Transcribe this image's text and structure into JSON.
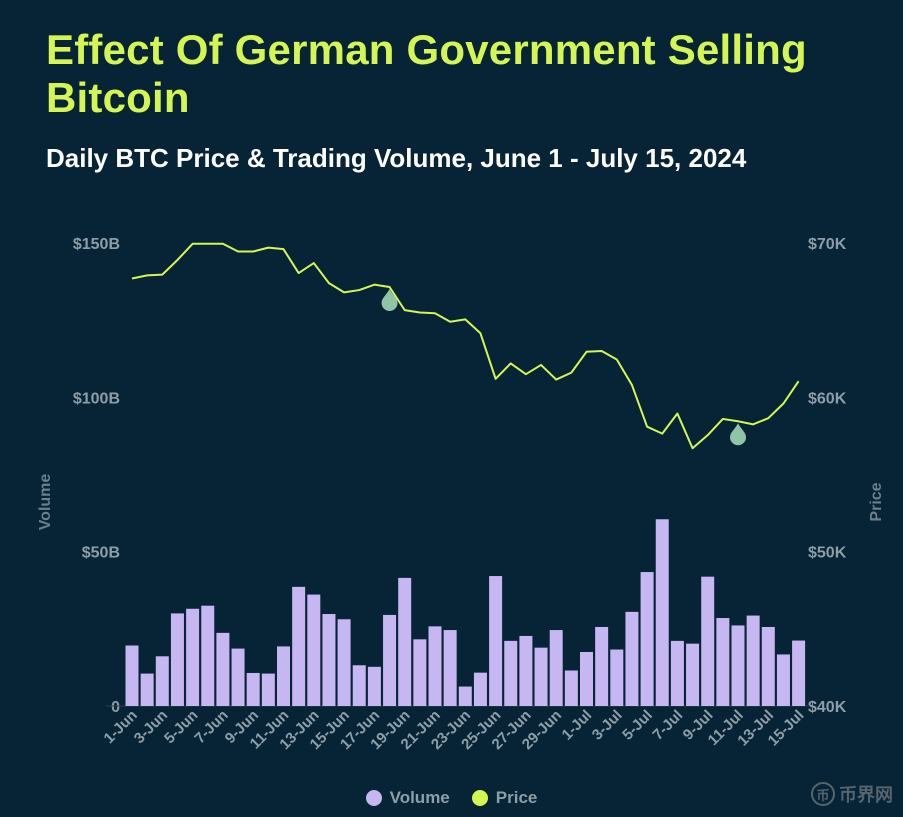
{
  "chart_data": {
    "type": "bar+line",
    "title": "Effect Of German Government Selling Bitcoin",
    "subtitle": "Daily BTC Price & Trading Volume, June 1 - July 15, 2024",
    "categories": [
      "1-Jun",
      "2-Jun",
      "3-Jun",
      "4-Jun",
      "5-Jun",
      "6-Jun",
      "7-Jun",
      "8-Jun",
      "9-Jun",
      "10-Jun",
      "11-Jun",
      "12-Jun",
      "13-Jun",
      "14-Jun",
      "15-Jun",
      "16-Jun",
      "17-Jun",
      "18-Jun",
      "19-Jun",
      "20-Jun",
      "21-Jun",
      "22-Jun",
      "23-Jun",
      "24-Jun",
      "25-Jun",
      "26-Jun",
      "27-Jun",
      "28-Jun",
      "29-Jun",
      "30-Jun",
      "1-Jul",
      "2-Jul",
      "3-Jul",
      "4-Jul",
      "5-Jul",
      "6-Jul",
      "7-Jul",
      "8-Jul",
      "9-Jul",
      "10-Jul",
      "11-Jul",
      "12-Jul",
      "13-Jul",
      "14-Jul",
      "15-Jul"
    ],
    "x_tick_labels": [
      "1-Jun",
      "3-Jun",
      "5-Jun",
      "7-Jun",
      "9-Jun",
      "11-Jun",
      "13-Jun",
      "15-Jun",
      "17-Jun",
      "19-Jun",
      "21-Jun",
      "23-Jun",
      "25-Jun",
      "27-Jun",
      "29-Jun",
      "1-Jul",
      "3-Jul",
      "5-Jul",
      "7-Jul",
      "9-Jul",
      "11-Jul",
      "13-Jul",
      "15-Jul"
    ],
    "series": [
      {
        "name": "Volume",
        "axis": "left",
        "unit": "B USD",
        "values": [
          19.6,
          10.5,
          16.1,
          30,
          31.5,
          32.5,
          23.7,
          18.6,
          10.7,
          10.5,
          19.3,
          38.6,
          36.1,
          29.8,
          28.1,
          13.2,
          12.7,
          29.5,
          41.5,
          21.6,
          25.8,
          24.6,
          6.3,
          10.8,
          42.1,
          21.1,
          22.7,
          18.9,
          24.6,
          11.5,
          17.5,
          25.6,
          18.3,
          30.5,
          43.4,
          60.5,
          21.1,
          20.2,
          41.9,
          28.5,
          26.1,
          29.3,
          25.6,
          16.7,
          21.2
        ]
      },
      {
        "name": "Price",
        "axis": "right",
        "unit": "USD",
        "values": [
          67700,
          67900,
          67950,
          68900,
          69950,
          69950,
          69950,
          69450,
          69450,
          69700,
          69600,
          68050,
          68700,
          67400,
          66800,
          66950,
          67300,
          67150,
          65650,
          65500,
          65450,
          64900,
          65050,
          64150,
          61200,
          62200,
          61500,
          62100,
          61150,
          61600,
          62950,
          63000,
          62450,
          60800,
          58100,
          57650,
          58950,
          56700,
          57550,
          58600,
          58450,
          58250,
          58650,
          59600,
          61050
        ]
      }
    ],
    "annotations": [
      {
        "type": "marker",
        "category": "18-Jun",
        "series": "Price"
      },
      {
        "type": "marker",
        "category": "11-Jul",
        "series": "Price"
      }
    ],
    "left_axis": {
      "label": "Volume",
      "ylim": [
        0,
        150
      ],
      "ticks": [
        "0",
        "$50B",
        "$100B",
        "$150B"
      ]
    },
    "right_axis": {
      "label": "Price",
      "ylim": [
        40000,
        70000
      ],
      "ticks": [
        "$40K",
        "$50K",
        "$60K",
        "$70K"
      ]
    },
    "colors": {
      "Volume": "#c6b6f2",
      "Price": "#d4f553",
      "marker": "#8fc4a8"
    },
    "legend": {
      "position": "bottom-center",
      "items": [
        "Volume",
        "Price"
      ]
    }
  },
  "watermark": {
    "text": "币界网",
    "icon": "币"
  }
}
